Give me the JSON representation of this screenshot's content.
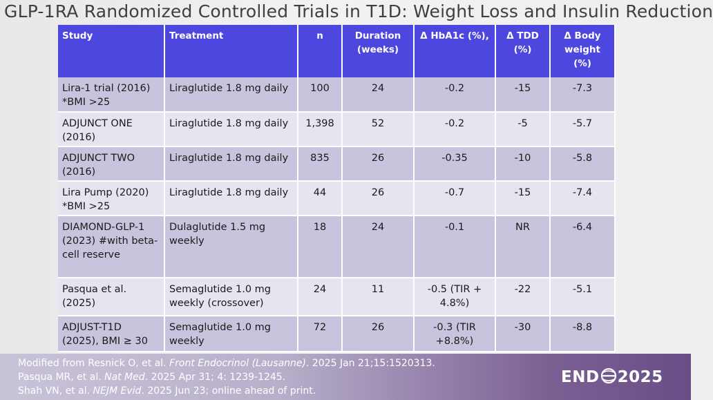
{
  "title": "GLP-1RA Randomized Controlled Trials in T1D: Weight Loss and Insulin Reduction",
  "table": {
    "headers": [
      "Study",
      "Treatment",
      "n",
      "Duration (weeks)",
      "Δ HbA1c (%),",
      "Δ TDD (%)",
      "Δ Body weight (%)"
    ],
    "rows": [
      {
        "study": "Lira-1 trial (2016) *BMI >25",
        "treatment": "Liraglutide 1.8 mg daily",
        "n": "100",
        "duration": "24",
        "hba1c": "-0.2",
        "tdd": "-15",
        "weight": "-7.3"
      },
      {
        "study": "ADJUNCT ONE (2016)",
        "treatment": "Liraglutide 1.8 mg daily",
        "n": "1,398",
        "duration": "52",
        "hba1c": "-0.2",
        "tdd": "-5",
        "weight": "-5.7"
      },
      {
        "study": "ADJUNCT TWO (2016)",
        "treatment": "Liraglutide 1.8 mg daily",
        "n": "835",
        "duration": "26",
        "hba1c": "-0.35",
        "tdd": "-10",
        "weight": "-5.8"
      },
      {
        "study": "Lira Pump (2020) *BMI >25",
        "treatment": "Liraglutide 1.8 mg daily",
        "n": "44",
        "duration": "26",
        "hba1c": "-0.7",
        "tdd": "-15",
        "weight": "-7.4"
      },
      {
        "study": "DIAMOND-GLP-1 (2023) #with beta-cell reserve",
        "treatment": "Dulaglutide 1.5 mg weekly",
        "n": "18",
        "duration": "24",
        "hba1c": "-0.1",
        "tdd": "NR",
        "weight": "-6.4"
      },
      {
        "study": "Pasqua et al. (2025)",
        "treatment": "Semaglutide 1.0 mg weekly (crossover)",
        "n": "24",
        "duration": "11",
        "hba1c": "-0.5 (TIR + 4.8%)",
        "tdd": "-22",
        "weight": "-5.1"
      },
      {
        "study": "ADJUST-T1D (2025), BMI ≥ 30",
        "treatment": "Semaglutide 1.0 mg weekly",
        "n": "72",
        "duration": "26",
        "hba1c": "-0.3 (TIR +8.8%)",
        "tdd": "-30",
        "weight": "-8.8"
      }
    ]
  },
  "references": {
    "ref1_a": "Modified from Resnick O, et al. ",
    "ref1_journal": "Front Endocrinol (Lausanne)",
    "ref1_b": ". 2025 Jan 21;15:1520313.",
    "ref2_a": "Pasqua MR, et al. ",
    "ref2_journal": "Nat Med",
    "ref2_b": ". 2025 Apr 31; 4: 1239-1245.",
    "ref3_a": "Shah VN, et al. ",
    "ref3_journal": "NEJM Evid",
    "ref3_b": ". 2025 Jun 23; online ahead of print."
  },
  "logo": {
    "left": "END",
    "right": "2025"
  }
}
